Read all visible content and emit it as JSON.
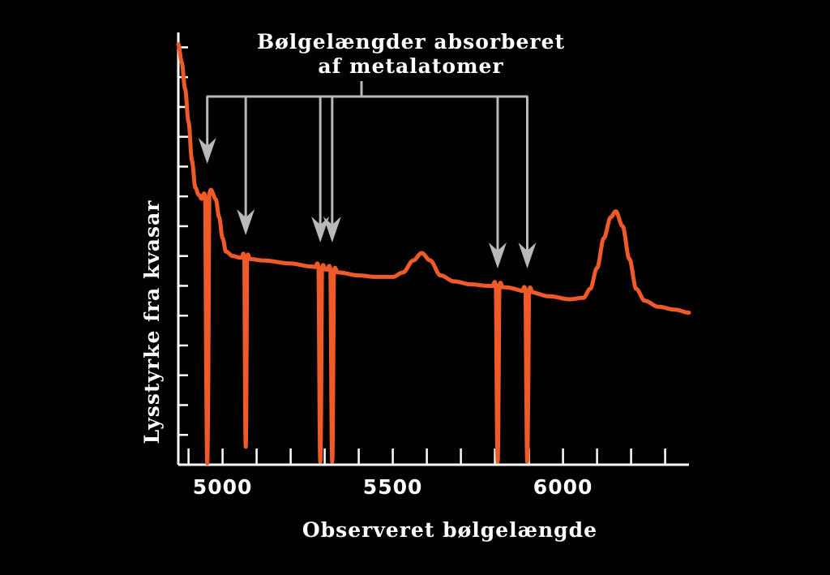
{
  "colors": {
    "background": "#000000",
    "axis": "#ffffff",
    "spectrum": "#f05a28",
    "arrows": "#b9b9b9",
    "text": "#ffffff"
  },
  "annotation": {
    "line1": "Bølgelængder absorberet",
    "line2": "af  metalatomer"
  },
  "chart_data": {
    "type": "line",
    "xlabel": "Observeret bølgelængde",
    "ylabel": "Lysstyrke fra kvasar",
    "xlim": [
      4870,
      6370
    ],
    "ylim": [
      0,
      14.5
    ],
    "xticks": [
      5000,
      5500,
      6000
    ],
    "xtick_labels": [
      "5000",
      "5500",
      "6000"
    ],
    "x_minor_step": 100,
    "y_minor_step": 1,
    "grid": false,
    "series": [
      {
        "name": "",
        "continuum": [
          [
            4870,
            14.1
          ],
          [
            4880,
            13.5
          ],
          [
            4890,
            12.6
          ],
          [
            4900,
            11.5
          ],
          [
            4910,
            10.2
          ],
          [
            4920,
            9.3
          ],
          [
            4930,
            9.05
          ],
          [
            4940,
            8.9
          ],
          [
            4950,
            9.0
          ],
          [
            4960,
            9.05
          ],
          [
            4970,
            9.1
          ],
          [
            4980,
            8.9
          ],
          [
            4990,
            8.3
          ],
          [
            5000,
            7.6
          ],
          [
            5010,
            7.15
          ],
          [
            5030,
            7.0
          ],
          [
            5050,
            6.95
          ],
          [
            5080,
            6.9
          ],
          [
            5120,
            6.85
          ],
          [
            5200,
            6.75
          ],
          [
            5260,
            6.65
          ],
          [
            5300,
            6.55
          ],
          [
            5340,
            6.45
          ],
          [
            5400,
            6.35
          ],
          [
            5450,
            6.3
          ],
          [
            5500,
            6.3
          ],
          [
            5530,
            6.45
          ],
          [
            5560,
            6.85
          ],
          [
            5585,
            7.1
          ],
          [
            5610,
            6.85
          ],
          [
            5640,
            6.35
          ],
          [
            5680,
            6.15
          ],
          [
            5730,
            6.05
          ],
          [
            5780,
            6.0
          ],
          [
            5830,
            5.95
          ],
          [
            5900,
            5.8
          ],
          [
            5960,
            5.65
          ],
          [
            6020,
            5.55
          ],
          [
            6060,
            5.6
          ],
          [
            6080,
            5.9
          ],
          [
            6100,
            6.6
          ],
          [
            6120,
            7.6
          ],
          [
            6140,
            8.3
          ],
          [
            6155,
            8.5
          ],
          [
            6175,
            8.0
          ],
          [
            6195,
            6.9
          ],
          [
            6215,
            5.9
          ],
          [
            6240,
            5.5
          ],
          [
            6280,
            5.3
          ],
          [
            6330,
            5.2
          ],
          [
            6370,
            5.1
          ]
        ],
        "absorption_lines": [
          {
            "center": 4955,
            "depth": 0.05,
            "width": 6
          },
          {
            "center": 5068,
            "depth": 0.6,
            "width": 4
          },
          {
            "center": 5287,
            "depth": 0.1,
            "width": 5
          },
          {
            "center": 5322,
            "depth": 0.1,
            "width": 5
          },
          {
            "center": 5808,
            "depth": 0.1,
            "width": 5
          },
          {
            "center": 5895,
            "depth": 0.1,
            "width": 5
          }
        ]
      }
    ]
  }
}
